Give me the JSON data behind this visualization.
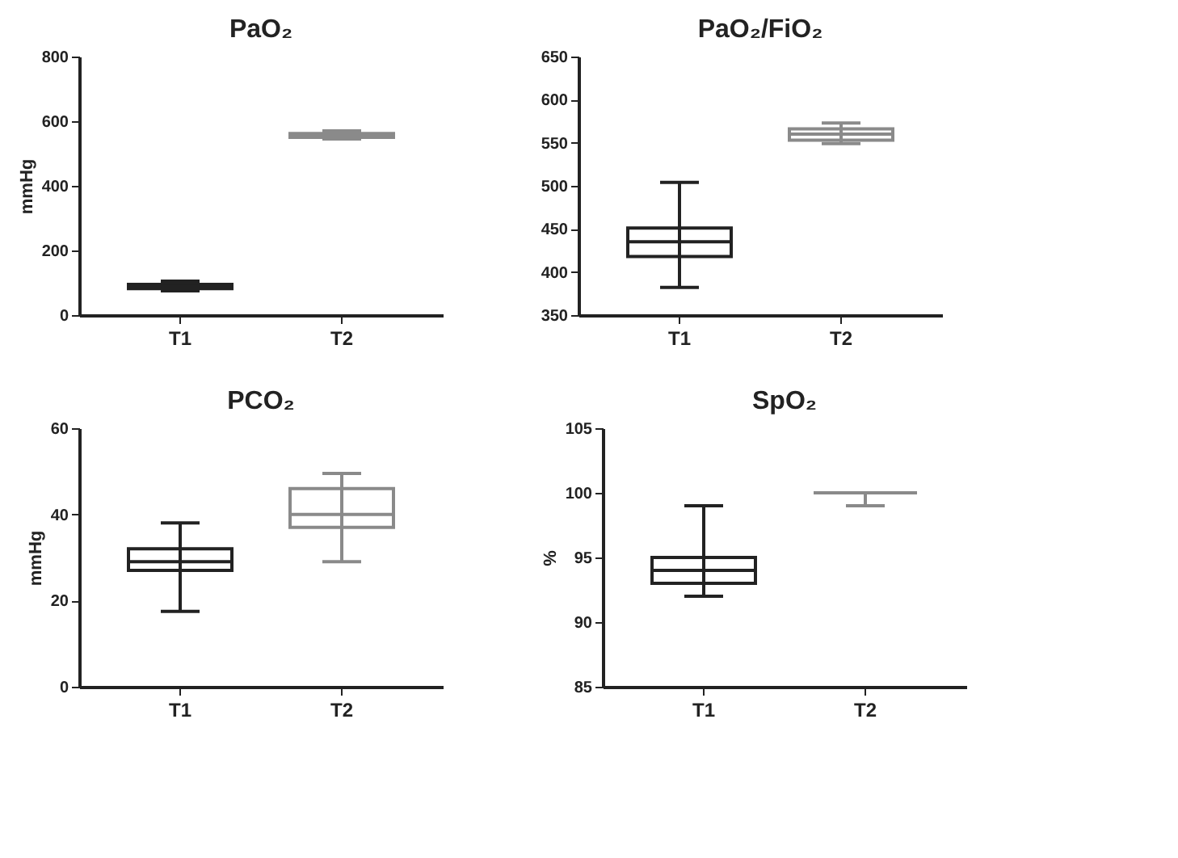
{
  "chart_data": [
    {
      "type": "box",
      "title": "PaO₂",
      "ylabel": "mmHg",
      "categories": [
        "T1",
        "T2"
      ],
      "colors": [
        "#222222",
        "#8a8a8a"
      ],
      "boxes": [
        {
          "low": 75,
          "q1": 82,
          "median": 88,
          "q3": 95,
          "high": 105
        },
        {
          "low": 545,
          "q1": 550,
          "median": 555,
          "q3": 562,
          "high": 570
        }
      ],
      "ylim": [
        0,
        800
      ],
      "yticks": [
        0,
        200,
        400,
        600,
        800
      ],
      "grid": false,
      "legend": false
    },
    {
      "type": "box",
      "title": "PaO₂/FiO₂",
      "categories": [
        "T1",
        "T2"
      ],
      "colors": [
        "#222222",
        "#8a8a8a"
      ],
      "boxes": [
        {
          "low": 382,
          "q1": 418,
          "median": 435,
          "q3": 451,
          "high": 504
        },
        {
          "low": 549,
          "q1": 553,
          "median": 560,
          "q3": 566,
          "high": 573
        }
      ],
      "ylim": [
        350,
        650
      ],
      "yticks": [
        350,
        400,
        450,
        500,
        550,
        600,
        650
      ],
      "grid": false,
      "legend": false
    },
    {
      "type": "box",
      "title": "PCO₂",
      "ylabel": "mmHg",
      "categories": [
        "T1",
        "T2"
      ],
      "colors": [
        "#222222",
        "#8a8a8a"
      ],
      "boxes": [
        {
          "low": 17.5,
          "q1": 27,
          "median": 29,
          "q3": 32,
          "high": 38
        },
        {
          "low": 29,
          "q1": 37,
          "median": 40,
          "q3": 46,
          "high": 49.5
        }
      ],
      "ylim": [
        0,
        60
      ],
      "yticks": [
        0,
        20,
        40,
        60
      ],
      "grid": false,
      "legend": false
    },
    {
      "type": "box",
      "title": "SpO₂",
      "ylabel": "%",
      "categories": [
        "T1",
        "T2"
      ],
      "colors": [
        "#222222",
        "#8a8a8a"
      ],
      "boxes": [
        {
          "low": 92,
          "q1": 93,
          "median": 94,
          "q3": 95,
          "high": 99
        },
        {
          "low": 99,
          "q1": 100,
          "median": 100,
          "q3": 100,
          "high": 100
        }
      ],
      "ylim": [
        85,
        105
      ],
      "yticks": [
        85,
        90,
        95,
        100,
        105
      ],
      "grid": false,
      "legend": false
    }
  ]
}
